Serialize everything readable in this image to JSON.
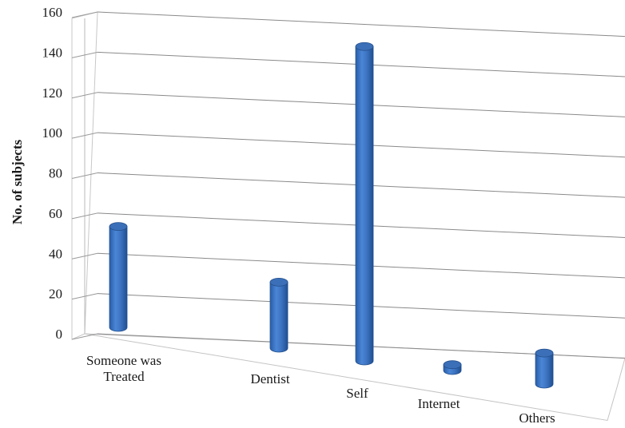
{
  "chart_data": {
    "type": "bar",
    "style": "3d-cylinder",
    "title": "",
    "xlabel": "",
    "ylabel": "No. of subjects",
    "ylim": [
      0,
      160
    ],
    "yticks": [
      "0",
      "20",
      "40",
      "60",
      "80",
      "100",
      "120",
      "140",
      "160"
    ],
    "grid": true,
    "legend": "none",
    "bar_color": "#3f76c4",
    "categories": [
      [
        "Someone was",
        "Treated"
      ],
      [
        "Dentist"
      ],
      [
        "Self"
      ],
      [
        "Internet"
      ],
      [
        "Others"
      ]
    ],
    "values": [
      52,
      34,
      162,
      3,
      16
    ]
  }
}
